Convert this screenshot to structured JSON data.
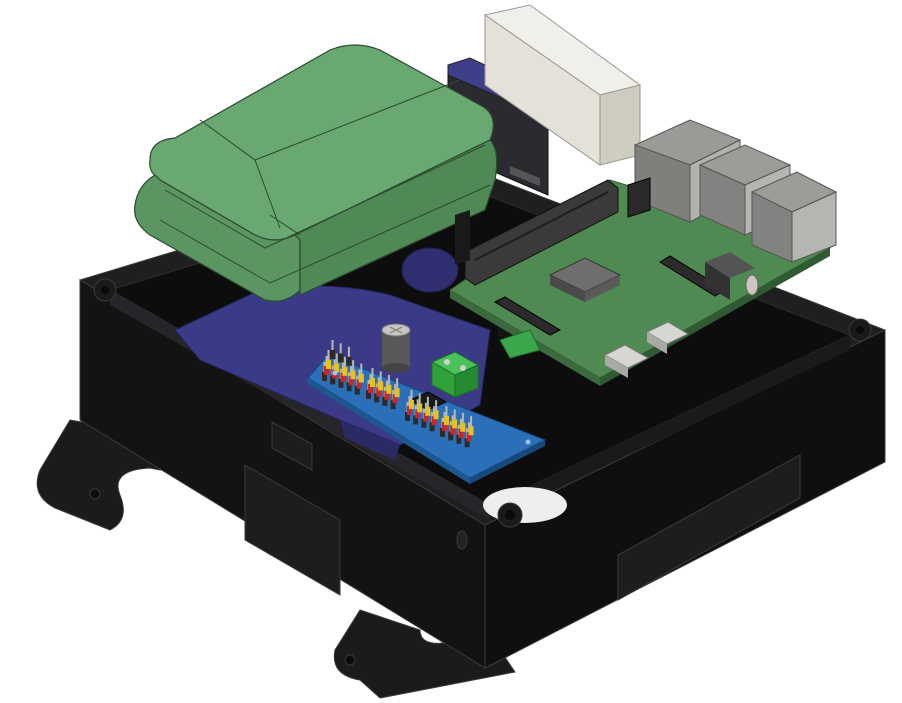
{
  "scene": {
    "background": "#ffffff",
    "colors": {
      "enclosure": "#1b1b1c",
      "enclosure_edge": "#3a3a3c",
      "enclosure_face": "#111112",
      "battery": "#5f9a66",
      "battery_edge": "#2c4a30",
      "rpi_board": "#4f8a52",
      "pca_board": "#2a6fb8",
      "servo": "#3a3a86",
      "connector_silver": "#b8b8b5",
      "header_black": "#2b2b2b",
      "header_red": "#c8282a",
      "header_yellow": "#e6c21f",
      "terminal_green": "#2fa23a",
      "hdmi_white": "#e4e1d8"
    },
    "components": [
      {
        "name": "enclosure",
        "icon": "box-icon"
      },
      {
        "name": "battery-pack",
        "icon": "battery-icon"
      },
      {
        "name": "raspberry-pi",
        "icon": "board-icon"
      },
      {
        "name": "pca9685-servo-driver",
        "icon": "board-icon"
      },
      {
        "name": "servo-motor",
        "icon": "servo-icon"
      },
      {
        "name": "motor-driver-module",
        "icon": "board-icon"
      }
    ]
  }
}
